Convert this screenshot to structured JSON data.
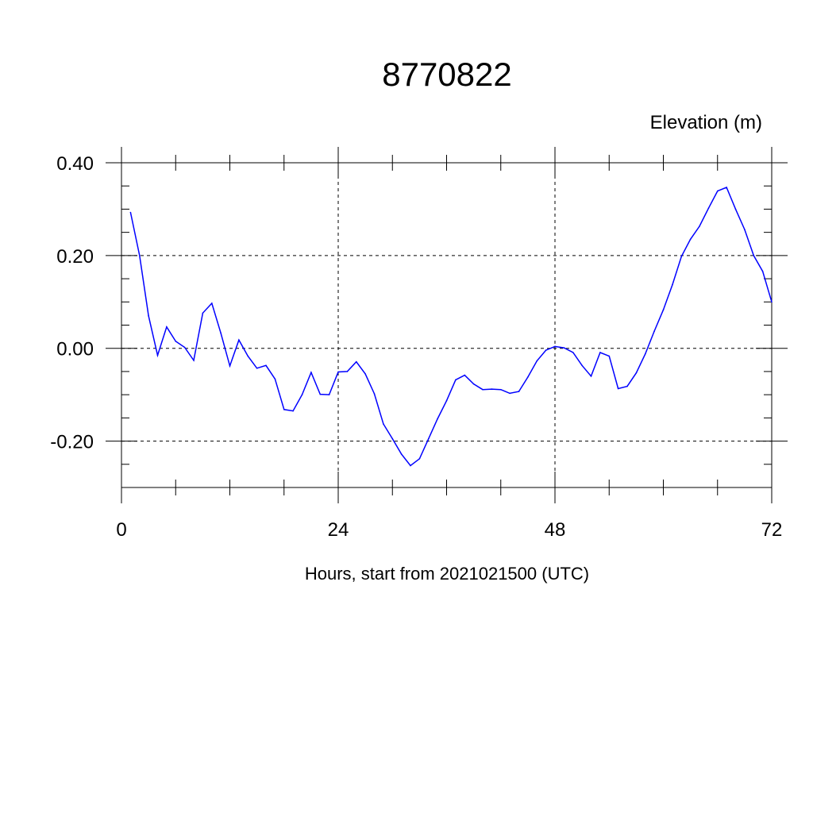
{
  "chart_data": {
    "type": "line",
    "title": "8770822",
    "ylabel": "Elevation (m)",
    "xlabel": "Hours, start from 2021021500 (UTC)",
    "xlim": [
      0,
      72
    ],
    "ylim": [
      -0.3,
      0.4
    ],
    "x_ticks": [
      0,
      24,
      48,
      72
    ],
    "x_tick_labels": [
      "0",
      "24",
      "48",
      "72"
    ],
    "y_ticks": [
      0.4,
      0.2,
      0.0,
      -0.2
    ],
    "y_tick_labels": [
      "0.40",
      "0.20",
      "0.00",
      "-0.20"
    ],
    "grid": true,
    "line_color": "#0000ff",
    "series": [
      {
        "x": [
          1,
          2,
          3,
          4,
          5,
          6,
          7,
          8,
          9,
          10,
          11,
          12,
          13,
          14,
          15,
          16,
          17,
          18,
          19,
          20,
          21,
          22,
          23,
          24,
          25,
          26,
          27,
          28,
          29,
          30,
          31,
          32,
          33,
          34,
          35,
          36,
          37,
          38,
          39,
          40,
          41,
          42,
          43,
          44,
          45,
          46,
          47,
          48,
          49,
          50,
          51,
          52,
          53,
          54,
          55,
          56,
          57,
          58,
          59,
          60,
          61,
          62,
          63,
          64,
          65,
          66,
          67,
          68,
          69,
          70,
          71,
          72
        ],
        "y": [
          0.293,
          0.2,
          0.07,
          -0.015,
          0.046,
          0.015,
          0.002,
          -0.026,
          0.076,
          0.097,
          0.033,
          -0.038,
          0.018,
          -0.017,
          -0.043,
          -0.037,
          -0.066,
          -0.132,
          -0.135,
          -0.1,
          -0.052,
          -0.099,
          -0.1,
          -0.051,
          -0.05,
          -0.029,
          -0.055,
          -0.098,
          -0.163,
          -0.195,
          -0.228,
          -0.253,
          -0.238,
          -0.195,
          -0.152,
          -0.113,
          -0.068,
          -0.058,
          -0.077,
          -0.089,
          -0.088,
          -0.089,
          -0.097,
          -0.093,
          -0.062,
          -0.027,
          -0.004,
          0.004,
          0.001,
          -0.009,
          -0.037,
          -0.06,
          -0.009,
          -0.017,
          -0.087,
          -0.082,
          -0.053,
          -0.012,
          0.037,
          0.083,
          0.137,
          0.198,
          0.235,
          0.263,
          0.302,
          0.339,
          0.347,
          0.3,
          0.256,
          0.2,
          0.166,
          0.1
        ]
      }
    ]
  }
}
